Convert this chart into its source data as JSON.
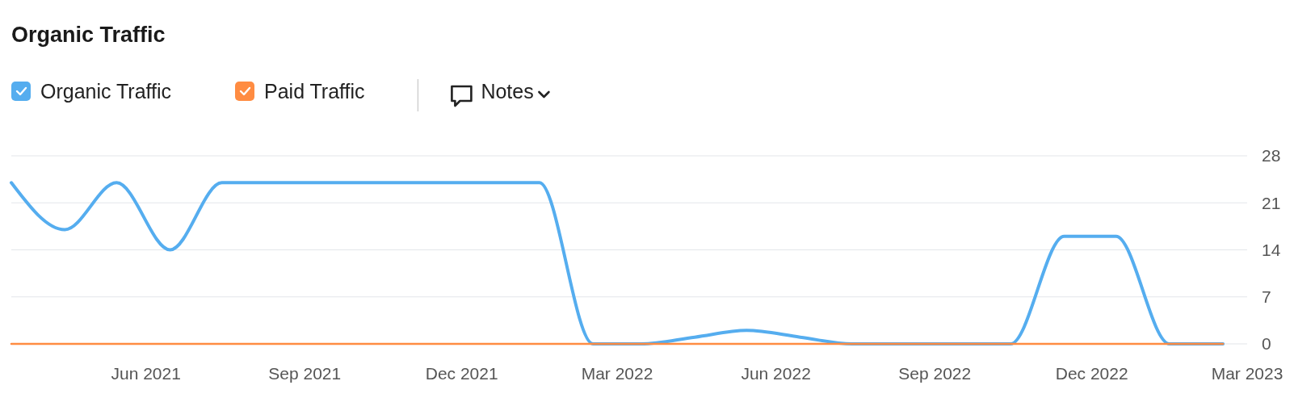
{
  "chart_data": {
    "type": "line",
    "title": "Organic Traffic",
    "x": [
      "2021-03-15",
      "2021-04-15",
      "2021-05-15",
      "2021-06-15",
      "2021-07-15",
      "2021-08-15",
      "2021-09-15",
      "2021-10-15",
      "2021-11-15",
      "2021-12-15",
      "2022-01-15",
      "2022-02-15",
      "2022-03-15",
      "2022-04-15",
      "2022-05-15",
      "2022-06-15",
      "2022-07-15",
      "2022-08-15",
      "2022-09-15",
      "2022-10-15",
      "2022-11-15",
      "2022-12-15",
      "2023-01-15",
      "2023-02-15"
    ],
    "series": [
      {
        "name": "Organic Traffic",
        "color": "#55adef",
        "values": [
          24,
          17,
          24,
          14,
          24,
          24,
          24,
          24,
          24,
          24,
          24,
          0,
          0,
          1,
          2,
          1,
          0,
          0,
          0,
          0,
          16,
          16,
          0,
          0
        ]
      },
      {
        "name": "Paid Traffic",
        "color": "#ff8c42",
        "values": [
          0,
          0,
          0,
          0,
          0,
          0,
          0,
          0,
          0,
          0,
          0,
          0,
          0,
          0,
          0,
          0,
          0,
          0,
          0,
          0,
          0,
          0,
          0,
          0
        ]
      }
    ],
    "xlim": [
      "2021-03-15",
      "2023-03-01"
    ],
    "xticks": [
      {
        "value": "2021-06-01",
        "label": "Jun 2021"
      },
      {
        "value": "2021-09-01",
        "label": "Sep 2021"
      },
      {
        "value": "2021-12-01",
        "label": "Dec 2021"
      },
      {
        "value": "2022-03-01",
        "label": "Mar 2022"
      },
      {
        "value": "2022-06-01",
        "label": "Jun 2022"
      },
      {
        "value": "2022-09-01",
        "label": "Sep 2022"
      },
      {
        "value": "2022-12-01",
        "label": "Dec 2022"
      },
      {
        "value": "2023-03-01",
        "label": "Mar 2023"
      }
    ],
    "ylim": [
      0,
      28
    ],
    "yticks": [
      0,
      7,
      14,
      21,
      28
    ],
    "grid": "y",
    "legend": "top left",
    "annotations": [
      "Notes"
    ]
  }
}
